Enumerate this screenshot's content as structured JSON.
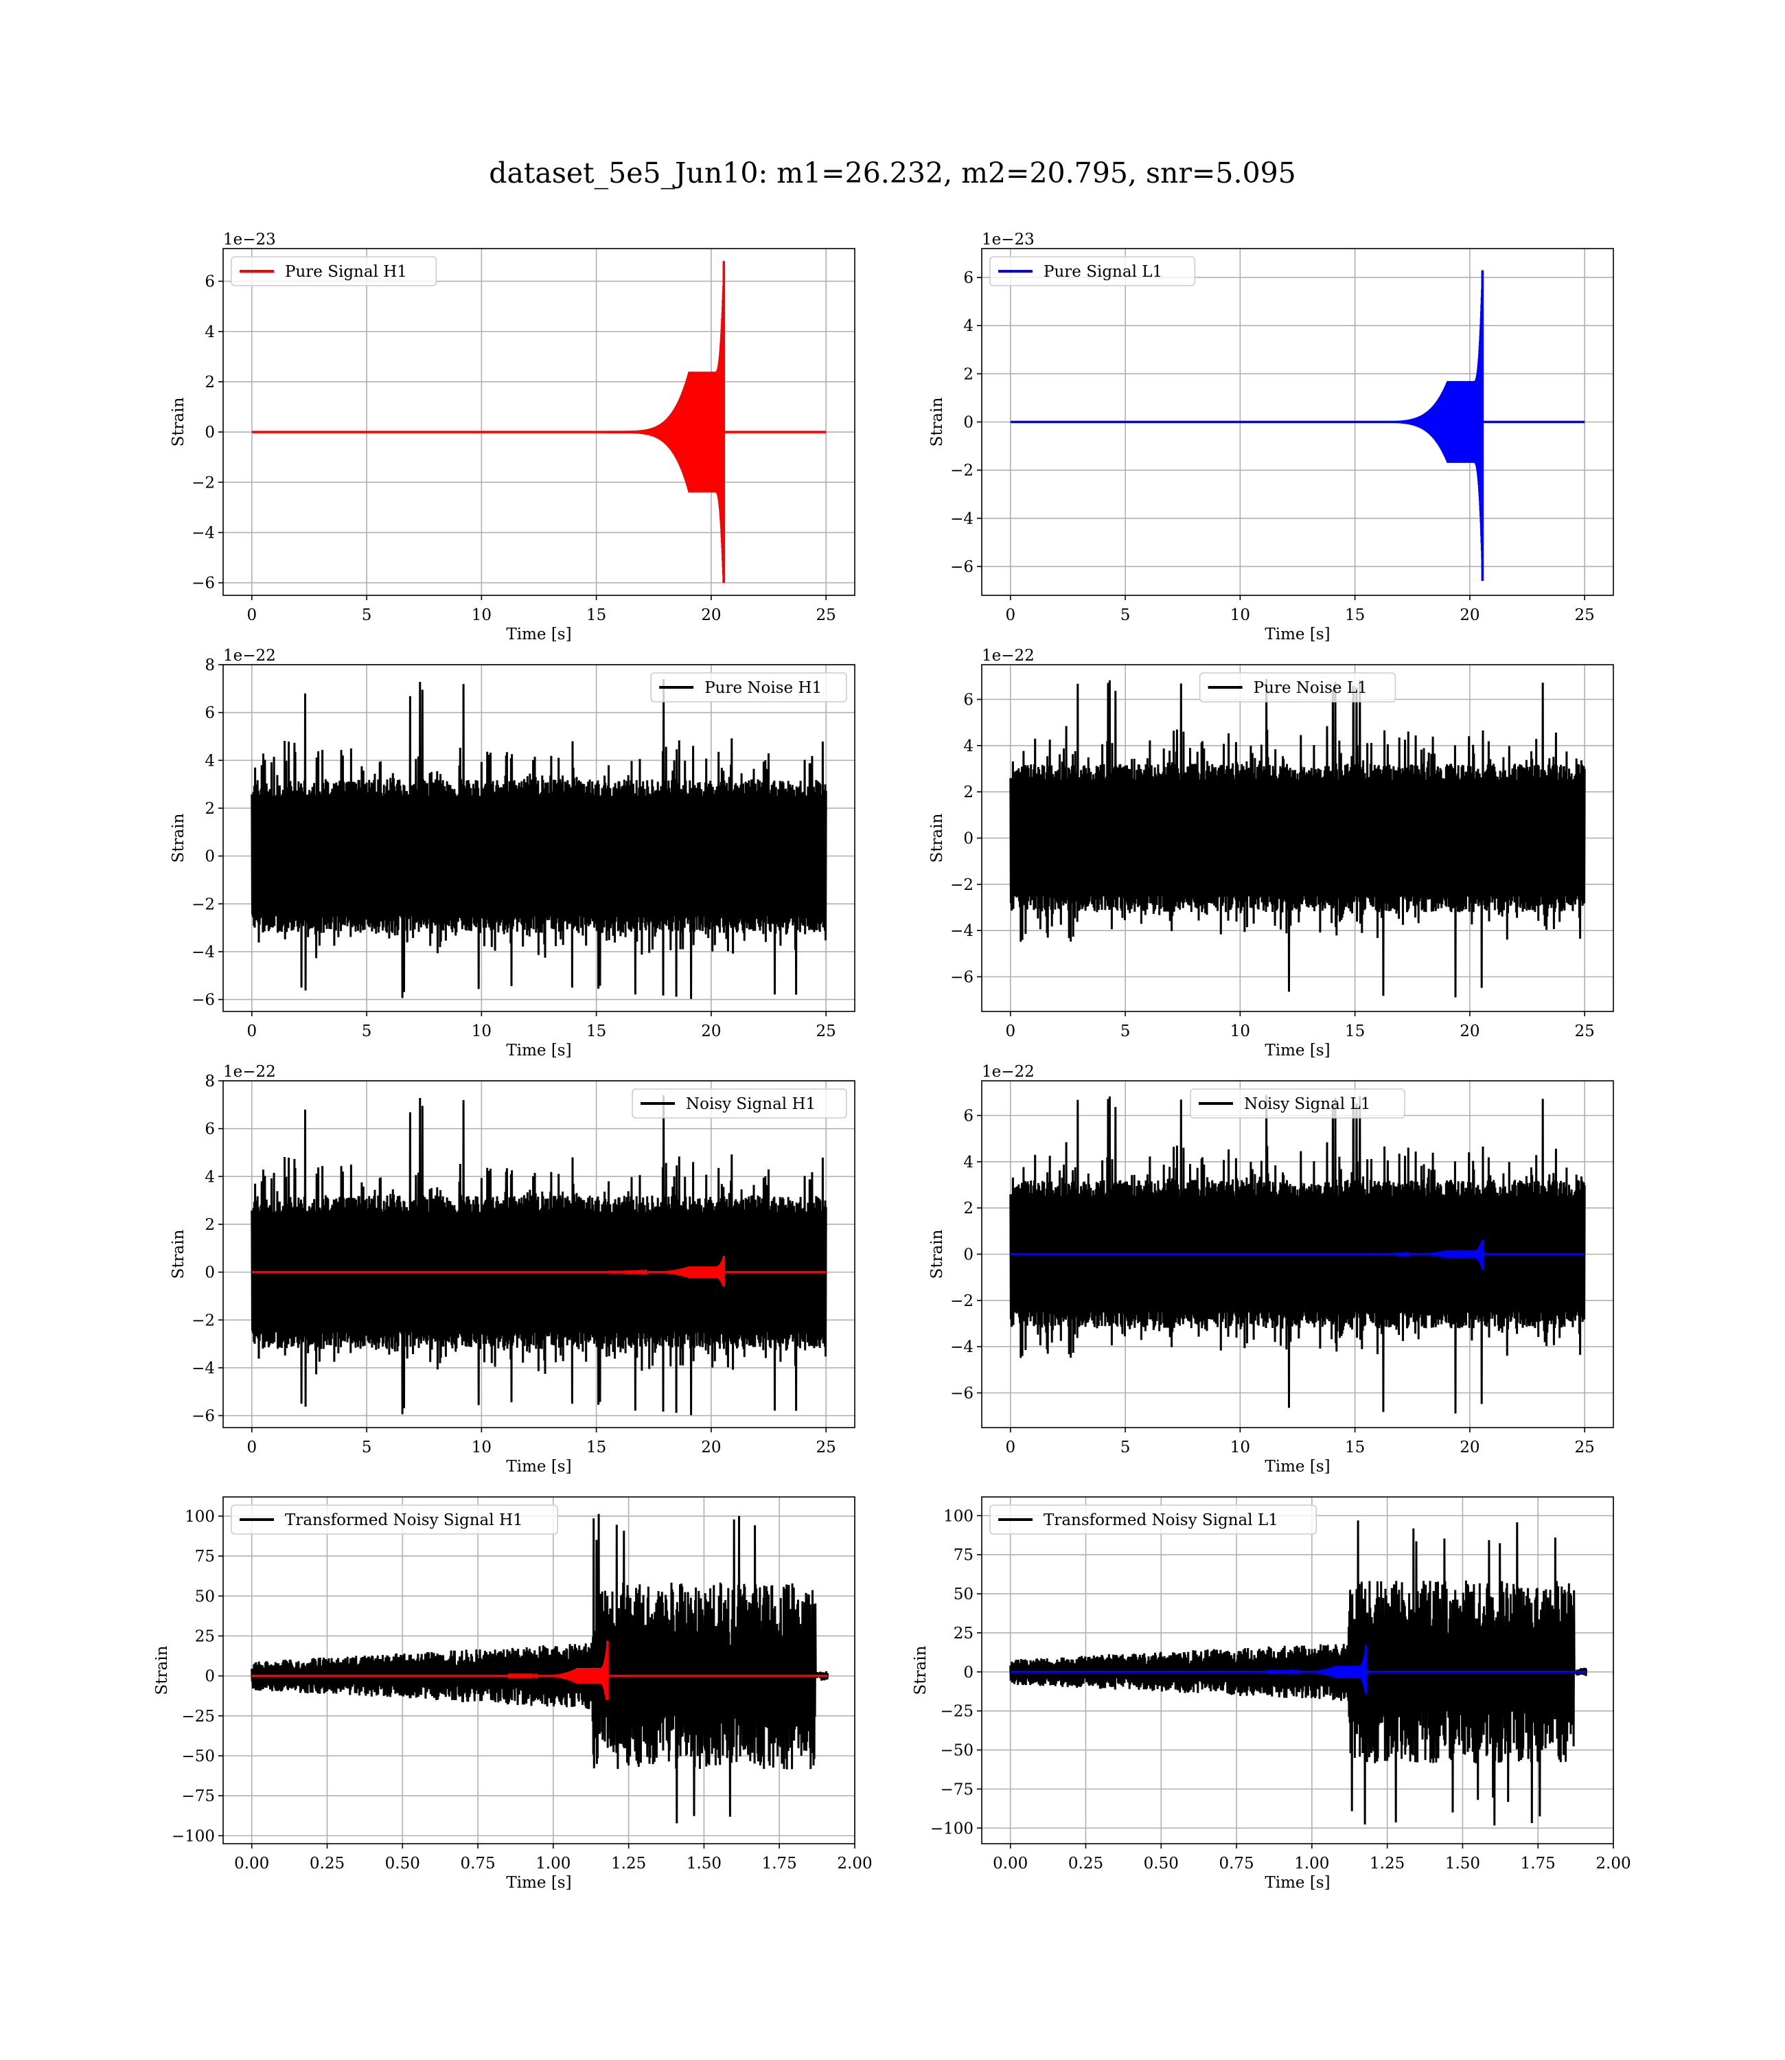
{
  "figure": {
    "title": "dataset_5e5_Jun10: m1=26.232, m2=20.795, snr=5.095"
  },
  "colors": {
    "h1_signal": "#ff0000",
    "l1_signal": "#0000ff",
    "noise": "#000000",
    "grid": "#b0b0b0"
  },
  "chart_data": [
    {
      "id": "pure-signal-h1",
      "type": "line",
      "xlabel": "Time [s]",
      "ylabel": "Strain",
      "offset_text": "1e−23",
      "xlim": [
        -1.25,
        26.25
      ],
      "ylim": [
        -6.5,
        7.3
      ],
      "xticks": [
        0,
        5,
        10,
        15,
        20,
        25
      ],
      "xtick_labels": [
        "0",
        "5",
        "10",
        "15",
        "20",
        "25"
      ],
      "yticks": [
        -6,
        -4,
        -2,
        0,
        2,
        4,
        6
      ],
      "ytick_labels": [
        "−6",
        "−4",
        "−2",
        "0",
        "2",
        "4",
        "6"
      ],
      "legend": "upper left",
      "grid": true,
      "series": [
        {
          "name": "Pure Signal H1",
          "color": "#ff0000",
          "chirp": {
            "start": 15.5,
            "merger": 20.55,
            "end": 25,
            "plateau_amp": 2.4,
            "peak_max": 6.8,
            "peak_min": -6.0
          }
        }
      ]
    },
    {
      "id": "pure-signal-l1",
      "type": "line",
      "xlabel": "Time [s]",
      "ylabel": "Strain",
      "offset_text": "1e−23",
      "xlim": [
        -1.25,
        26.25
      ],
      "ylim": [
        -7.2,
        7.2
      ],
      "xticks": [
        0,
        5,
        10,
        15,
        20,
        25
      ],
      "xtick_labels": [
        "0",
        "5",
        "10",
        "15",
        "20",
        "25"
      ],
      "yticks": [
        -6,
        -4,
        -2,
        0,
        2,
        4,
        6
      ],
      "ytick_labels": [
        "−6",
        "−4",
        "−2",
        "0",
        "2",
        "4",
        "6"
      ],
      "legend": "upper left",
      "grid": true,
      "series": [
        {
          "name": "Pure Signal L1",
          "color": "#0000ff",
          "chirp": {
            "start": 15.5,
            "merger": 20.55,
            "end": 25,
            "plateau_amp": 1.7,
            "peak_max": 6.3,
            "peak_min": -6.6
          }
        }
      ]
    },
    {
      "id": "pure-noise-h1",
      "type": "line",
      "xlabel": "Time [s]",
      "ylabel": "Strain",
      "offset_text": "1e−22",
      "xlim": [
        -1.25,
        26.25
      ],
      "ylim": [
        -6.5,
        8.0
      ],
      "xticks": [
        0,
        5,
        10,
        15,
        20,
        25
      ],
      "xtick_labels": [
        "0",
        "5",
        "10",
        "15",
        "20",
        "25"
      ],
      "yticks": [
        -6,
        -4,
        -2,
        0,
        2,
        4,
        6,
        8
      ],
      "ytick_labels": [
        "−6",
        "−4",
        "−2",
        "0",
        "2",
        "4",
        "6",
        "8"
      ],
      "legend": "upper right",
      "grid": true,
      "series": [
        {
          "name": "Pure Noise H1",
          "color": "#000000",
          "noise": {
            "start": 0,
            "end": 25,
            "core_amp": 2.8,
            "peak_max": 7.4,
            "peak_min": -6.0,
            "seed": 11
          }
        }
      ]
    },
    {
      "id": "pure-noise-l1",
      "type": "line",
      "xlabel": "Time [s]",
      "ylabel": "Strain",
      "offset_text": "1e−22",
      "xlim": [
        -1.25,
        26.25
      ],
      "ylim": [
        -7.5,
        7.5
      ],
      "xticks": [
        0,
        5,
        10,
        15,
        20,
        25
      ],
      "xtick_labels": [
        "0",
        "5",
        "10",
        "15",
        "20",
        "25"
      ],
      "yticks": [
        -6,
        -4,
        -2,
        0,
        2,
        4,
        6
      ],
      "ytick_labels": [
        "−6",
        "−4",
        "−2",
        "0",
        "2",
        "4",
        "6"
      ],
      "legend": "upper center",
      "grid": true,
      "series": [
        {
          "name": "Pure Noise L1",
          "color": "#000000",
          "noise": {
            "start": 0,
            "end": 25,
            "core_amp": 2.8,
            "peak_max": 6.9,
            "peak_min": -6.9,
            "seed": 23
          }
        }
      ]
    },
    {
      "id": "noisy-signal-h1",
      "type": "line",
      "xlabel": "Time [s]",
      "ylabel": "Strain",
      "offset_text": "1e−22",
      "xlim": [
        -1.25,
        26.25
      ],
      "ylim": [
        -6.5,
        8.0
      ],
      "xticks": [
        0,
        5,
        10,
        15,
        20,
        25
      ],
      "xtick_labels": [
        "0",
        "5",
        "10",
        "15",
        "20",
        "25"
      ],
      "yticks": [
        -6,
        -4,
        -2,
        0,
        2,
        4,
        6,
        8
      ],
      "ytick_labels": [
        "−6",
        "−4",
        "−2",
        "0",
        "2",
        "4",
        "6",
        "8"
      ],
      "legend": "upper right",
      "grid": true,
      "series": [
        {
          "name": "Noisy Signal H1",
          "color": "#000000",
          "noise": {
            "start": 0,
            "end": 25,
            "core_amp": 2.8,
            "peak_max": 7.4,
            "peak_min": -6.0,
            "seed": 11
          }
        },
        {
          "name": "",
          "color": "#ff0000",
          "chirp": {
            "start": 15.5,
            "merger": 20.55,
            "end": 25,
            "plateau_amp": 0.24,
            "peak_max": 0.68,
            "peak_min": -0.6
          }
        }
      ]
    },
    {
      "id": "noisy-signal-l1",
      "type": "line",
      "xlabel": "Time [s]",
      "ylabel": "Strain",
      "offset_text": "1e−22",
      "xlim": [
        -1.25,
        26.25
      ],
      "ylim": [
        -7.5,
        7.5
      ],
      "xticks": [
        0,
        5,
        10,
        15,
        20,
        25
      ],
      "xtick_labels": [
        "0",
        "5",
        "10",
        "15",
        "20",
        "25"
      ],
      "yticks": [
        -6,
        -4,
        -2,
        0,
        2,
        4,
        6
      ],
      "ytick_labels": [
        "−6",
        "−4",
        "−2",
        "0",
        "2",
        "4",
        "6"
      ],
      "legend": "upper center",
      "grid": true,
      "series": [
        {
          "name": "Noisy Signal L1",
          "color": "#000000",
          "noise": {
            "start": 0,
            "end": 25,
            "core_amp": 2.8,
            "peak_max": 6.9,
            "peak_min": -6.9,
            "seed": 23
          }
        },
        {
          "name": "",
          "color": "#0000ff",
          "chirp": {
            "start": 15.5,
            "merger": 20.55,
            "end": 25,
            "plateau_amp": 0.17,
            "peak_max": 0.63,
            "peak_min": -0.66
          }
        }
      ]
    },
    {
      "id": "transformed-noisy-signal-h1",
      "type": "line",
      "xlabel": "Time [s]",
      "ylabel": "Strain",
      "offset_text": "",
      "xlim": [
        -0.095,
        2.0
      ],
      "ylim": [
        -105,
        112
      ],
      "xticks": [
        0,
        0.25,
        0.5,
        0.75,
        1.0,
        1.25,
        1.5,
        1.75,
        2.0
      ],
      "xtick_labels": [
        "0.00",
        "0.25",
        "0.50",
        "0.75",
        "1.00",
        "1.25",
        "1.50",
        "1.75",
        "2.00"
      ],
      "yticks": [
        -100,
        -75,
        -50,
        -25,
        0,
        25,
        50,
        75,
        100
      ],
      "ytick_labels": [
        "−100",
        "−75",
        "−50",
        "−25",
        "0",
        "25",
        "50",
        "75",
        "100"
      ],
      "legend": "upper left",
      "grid": true,
      "series": [
        {
          "name": "Transformed Noisy Signal H1",
          "color": "#000000",
          "whitened": {
            "start": 0,
            "end": 1.91,
            "jump": 1.13,
            "jump_end": 1.87,
            "low_amp": 10,
            "high_amp": 45,
            "peak_max": 105,
            "peak_min": -98,
            "seed": 31
          }
        },
        {
          "name": "",
          "color": "#ff0000",
          "chirp": {
            "start": 0.85,
            "merger": 1.18,
            "end": 1.91,
            "plateau_amp": 5,
            "peak_max": 22,
            "peak_min": -15
          }
        }
      ]
    },
    {
      "id": "transformed-noisy-signal-l1",
      "type": "line",
      "xlabel": "Time [s]",
      "ylabel": "Strain",
      "offset_text": "",
      "xlim": [
        -0.095,
        2.0
      ],
      "ylim": [
        -110,
        112
      ],
      "xticks": [
        0,
        0.25,
        0.5,
        0.75,
        1.0,
        1.25,
        1.5,
        1.75,
        2.0
      ],
      "xtick_labels": [
        "0.00",
        "0.25",
        "0.50",
        "0.75",
        "1.00",
        "1.25",
        "1.50",
        "1.75",
        "2.00"
      ],
      "yticks": [
        -100,
        -75,
        -50,
        -25,
        0,
        25,
        50,
        75,
        100
      ],
      "ytick_labels": [
        "−100",
        "−75",
        "−50",
        "−25",
        "0",
        "25",
        "50",
        "75",
        "100"
      ],
      "legend": "upper left",
      "grid": true,
      "series": [
        {
          "name": "Transformed Noisy Signal L1",
          "color": "#000000",
          "whitened": {
            "start": 0,
            "end": 1.91,
            "jump": 1.12,
            "jump_end": 1.87,
            "low_amp": 9,
            "high_amp": 45,
            "peak_max": 100,
            "peak_min": -100,
            "seed": 47
          }
        },
        {
          "name": "",
          "color": "#0000ff",
          "chirp": {
            "start": 0.85,
            "merger": 1.18,
            "end": 1.91,
            "plateau_amp": 4,
            "peak_max": 17,
            "peak_min": -14
          }
        }
      ]
    }
  ]
}
